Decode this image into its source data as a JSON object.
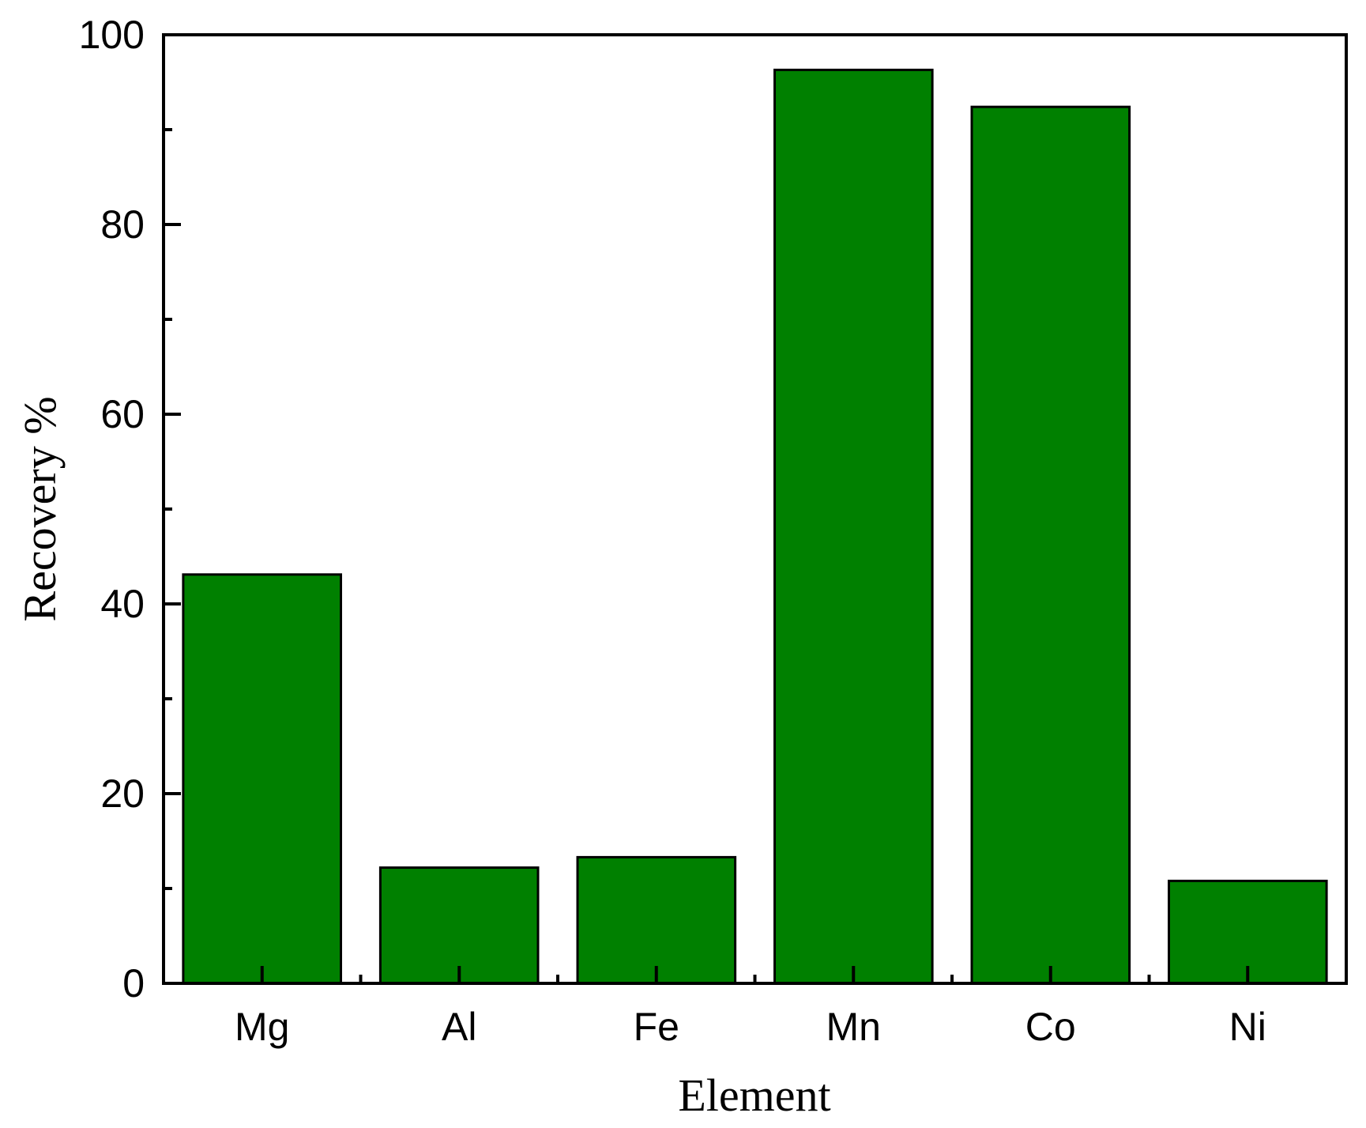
{
  "chart_data": {
    "type": "bar",
    "title": "",
    "xlabel": "Element",
    "ylabel": "Recovery %",
    "categories": [
      "Mg",
      "Al",
      "Fe",
      "Mn",
      "Co",
      "Ni"
    ],
    "values": [
      43.1,
      12.2,
      13.3,
      96.3,
      92.4,
      10.8
    ],
    "ylim": [
      0,
      100
    ],
    "yticks": [
      "0",
      "20",
      "40",
      "60",
      "80",
      "100"
    ],
    "grid": false,
    "legend": "none",
    "colors": {
      "bar_fill": "#008000",
      "bar_stroke": "#000000",
      "axis": "#000000"
    }
  }
}
